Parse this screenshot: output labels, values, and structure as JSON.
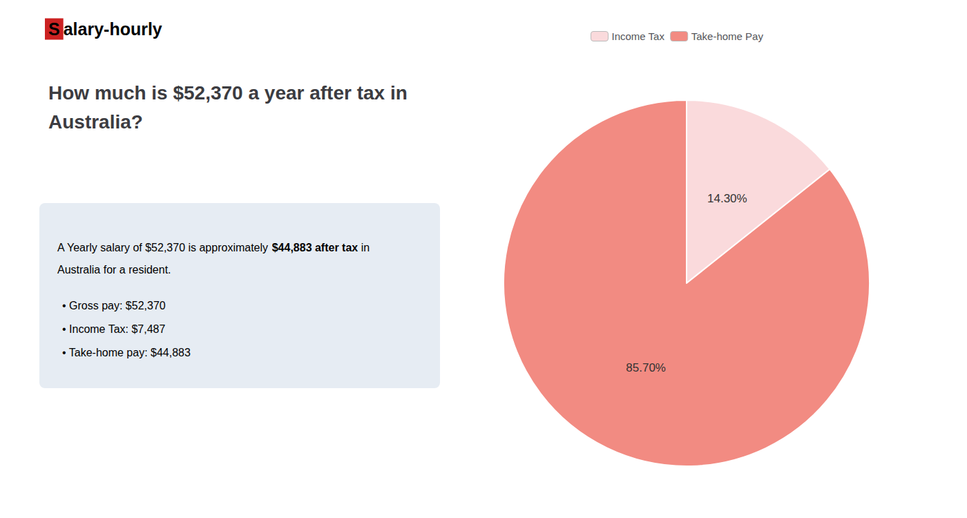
{
  "chart_data": {
    "type": "pie",
    "title": "How much is $52,370 a year after tax in\nAustralia?",
    "categories": [
      "Income Tax",
      "Take-home Pay"
    ],
    "values": [
      14.3,
      85.7
    ],
    "value_labels": [
      "14.30%",
      "85.70%"
    ],
    "colors": [
      "#fadadc",
      "#f28b82"
    ],
    "legend": "top",
    "data_labels": true,
    "annotations": [
      [
        {
          "text": "S",
          "color": "#cc2222"
        },
        {
          "text": "alary-hourly"
        }
      ],
      [
        {
          "text": "A Yearly salary of $52,370 is approximately "
        },
        {
          "text": "$44,883 after tax",
          "color": "#cc2222"
        },
        {
          "text": " in"
        }
      ],
      [
        {
          "text": "Australia for a resident."
        }
      ],
      [
        {
          "text": "• Gross pay: $52,370"
        }
      ],
      [
        {
          "text": "• Income Tax: $7,487"
        }
      ],
      [
        {
          "text": "• Take-home pay: $44,883"
        }
      ]
    ]
  }
}
